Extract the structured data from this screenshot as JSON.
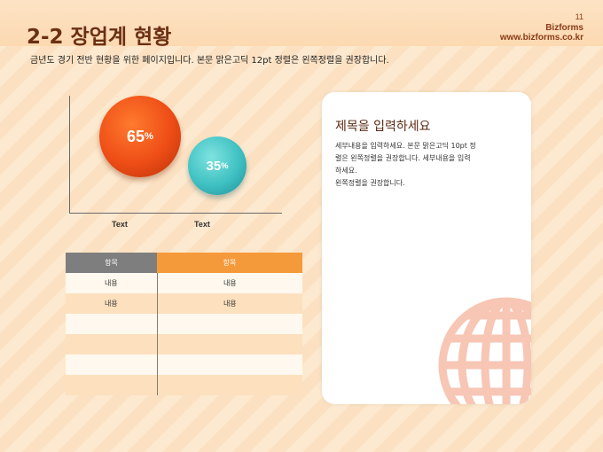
{
  "header": {
    "title": "2-2 장업계 현황",
    "page_number": "11",
    "brand_name": "Bizforms",
    "brand_url": "www.bizforms.co.kr"
  },
  "subtitle": "금년도 경기 전반 현황을 위한 페이지입니다. 본문 맑은고딕 12pt 정렬은 왼쪽정렬을 권장합니다.",
  "chart_data": {
    "type": "bubble",
    "categories": [
      "Text",
      "Text"
    ],
    "values": [
      65,
      35
    ],
    "value_unit": "%",
    "colors": [
      "#ee4d16",
      "#3fc0c2"
    ]
  },
  "bubbles": [
    {
      "value": "65",
      "unit": "%"
    },
    {
      "value": "35",
      "unit": "%"
    }
  ],
  "table": {
    "headers": [
      "항목",
      "항목"
    ],
    "rows": [
      [
        "내용",
        "내용"
      ],
      [
        "내용",
        "내용"
      ],
      [
        "",
        ""
      ],
      [
        "",
        ""
      ],
      [
        "",
        ""
      ],
      [
        "",
        ""
      ]
    ]
  },
  "card": {
    "title": "제목을 입력하세요",
    "body_lines": [
      "세부내용을 입력하세요. 본문 맑은고딕 10pt 정",
      "렬은 왼쪽정렬을 권장합니다. 세부내용을 입력",
      "하세요.",
      "왼쪽정렬을 권장합니다."
    ]
  },
  "colors": {
    "accent_orange": "#f59a3a",
    "title_brown": "#6b2f14",
    "header_gray": "#7e7e7e",
    "globe": "#f7c6b4"
  },
  "icons": [
    "globe-icon"
  ]
}
